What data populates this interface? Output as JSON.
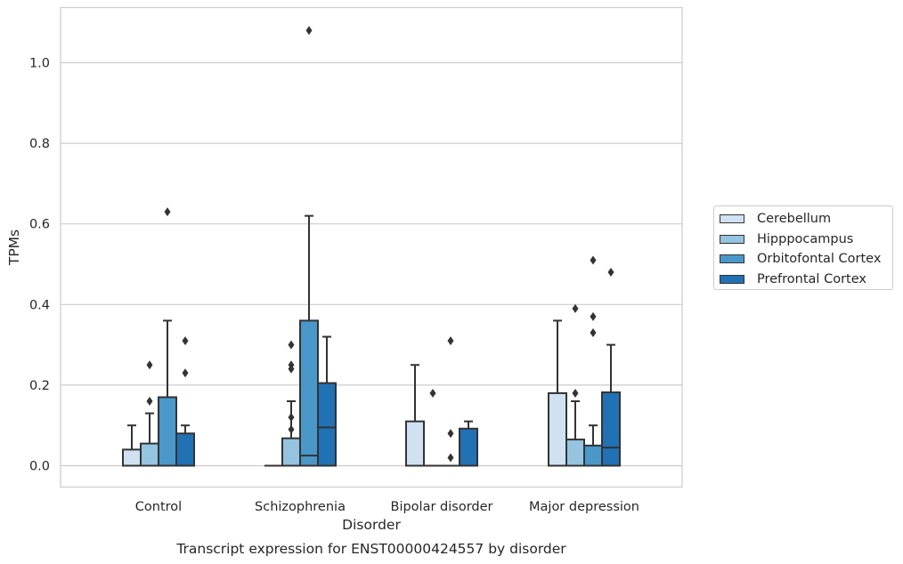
{
  "chart_data": {
    "type": "box",
    "title": "Transcript expression for ENST00000424557 by disorder",
    "xlabel": "Disorder",
    "ylabel": "TPMs",
    "ylim": [
      -0.05,
      1.14
    ],
    "yticks": [
      "0.0",
      "0.2",
      "0.4",
      "0.6",
      "0.8",
      "1.0"
    ],
    "categories": [
      "Control",
      "Schizophrenia",
      "Bipolar disorder",
      "Major depression"
    ],
    "grid": true,
    "legend_position": "right",
    "series": [
      {
        "name": "Cerebellum",
        "color": "#d0e1f2",
        "boxes": [
          {
            "whisker_low": 0.0,
            "q1": 0.0,
            "median": 0.0,
            "q3": 0.04,
            "whisker_high": 0.1,
            "outliers": []
          },
          {
            "whisker_low": 0.0,
            "q1": 0.0,
            "median": 0.0,
            "q3": 0.0,
            "whisker_high": 0.0,
            "outliers": []
          },
          {
            "whisker_low": 0.0,
            "q1": 0.0,
            "median": 0.0,
            "q3": 0.11,
            "whisker_high": 0.25,
            "outliers": []
          },
          {
            "whisker_low": 0.0,
            "q1": 0.0,
            "median": 0.0,
            "q3": 0.18,
            "whisker_high": 0.36,
            "outliers": []
          }
        ]
      },
      {
        "name": "Hipppocampus",
        "color": "#94c4df",
        "boxes": [
          {
            "whisker_low": 0.0,
            "q1": 0.0,
            "median": 0.0,
            "q3": 0.055,
            "whisker_high": 0.13,
            "outliers": [
              0.16,
              0.25
            ]
          },
          {
            "whisker_low": 0.0,
            "q1": 0.0,
            "median": 0.0,
            "q3": 0.068,
            "whisker_high": 0.16,
            "outliers": [
              0.09,
              0.12,
              0.24,
              0.25,
              0.3
            ]
          },
          {
            "whisker_low": 0.0,
            "q1": 0.0,
            "median": 0.0,
            "q3": 0.0,
            "whisker_high": 0.0,
            "outliers": [
              0.18
            ]
          },
          {
            "whisker_low": 0.0,
            "q1": 0.0,
            "median": 0.0,
            "q3": 0.065,
            "whisker_high": 0.16,
            "outliers": [
              0.18,
              0.39
            ]
          }
        ]
      },
      {
        "name": "Orbitofontal Cortex",
        "color": "#4a98c9",
        "boxes": [
          {
            "whisker_low": 0.0,
            "q1": 0.0,
            "median": 0.0,
            "q3": 0.17,
            "whisker_high": 0.36,
            "outliers": [
              0.63
            ]
          },
          {
            "whisker_low": 0.0,
            "q1": 0.0,
            "median": 0.025,
            "q3": 0.36,
            "whisker_high": 0.62,
            "outliers": [
              1.08
            ]
          },
          {
            "whisker_low": 0.0,
            "q1": 0.0,
            "median": 0.0,
            "q3": 0.0,
            "whisker_high": 0.0,
            "outliers": [
              0.02,
              0.08,
              0.31
            ]
          },
          {
            "whisker_low": 0.0,
            "q1": 0.0,
            "median": 0.0,
            "q3": 0.05,
            "whisker_high": 0.1,
            "outliers": [
              0.33,
              0.37,
              0.51
            ]
          }
        ]
      },
      {
        "name": "Prefrontal Cortex",
        "color": "#2171b5",
        "boxes": [
          {
            "whisker_low": 0.0,
            "q1": 0.0,
            "median": 0.0,
            "q3": 0.08,
            "whisker_high": 0.1,
            "outliers": [
              0.23,
              0.31
            ]
          },
          {
            "whisker_low": 0.0,
            "q1": 0.0,
            "median": 0.095,
            "q3": 0.205,
            "whisker_high": 0.32,
            "outliers": []
          },
          {
            "whisker_low": 0.0,
            "q1": 0.0,
            "median": 0.0,
            "q3": 0.092,
            "whisker_high": 0.11,
            "outliers": []
          },
          {
            "whisker_low": 0.0,
            "q1": 0.0,
            "median": 0.045,
            "q3": 0.182,
            "whisker_high": 0.3,
            "outliers": [
              0.48
            ]
          }
        ]
      }
    ]
  }
}
